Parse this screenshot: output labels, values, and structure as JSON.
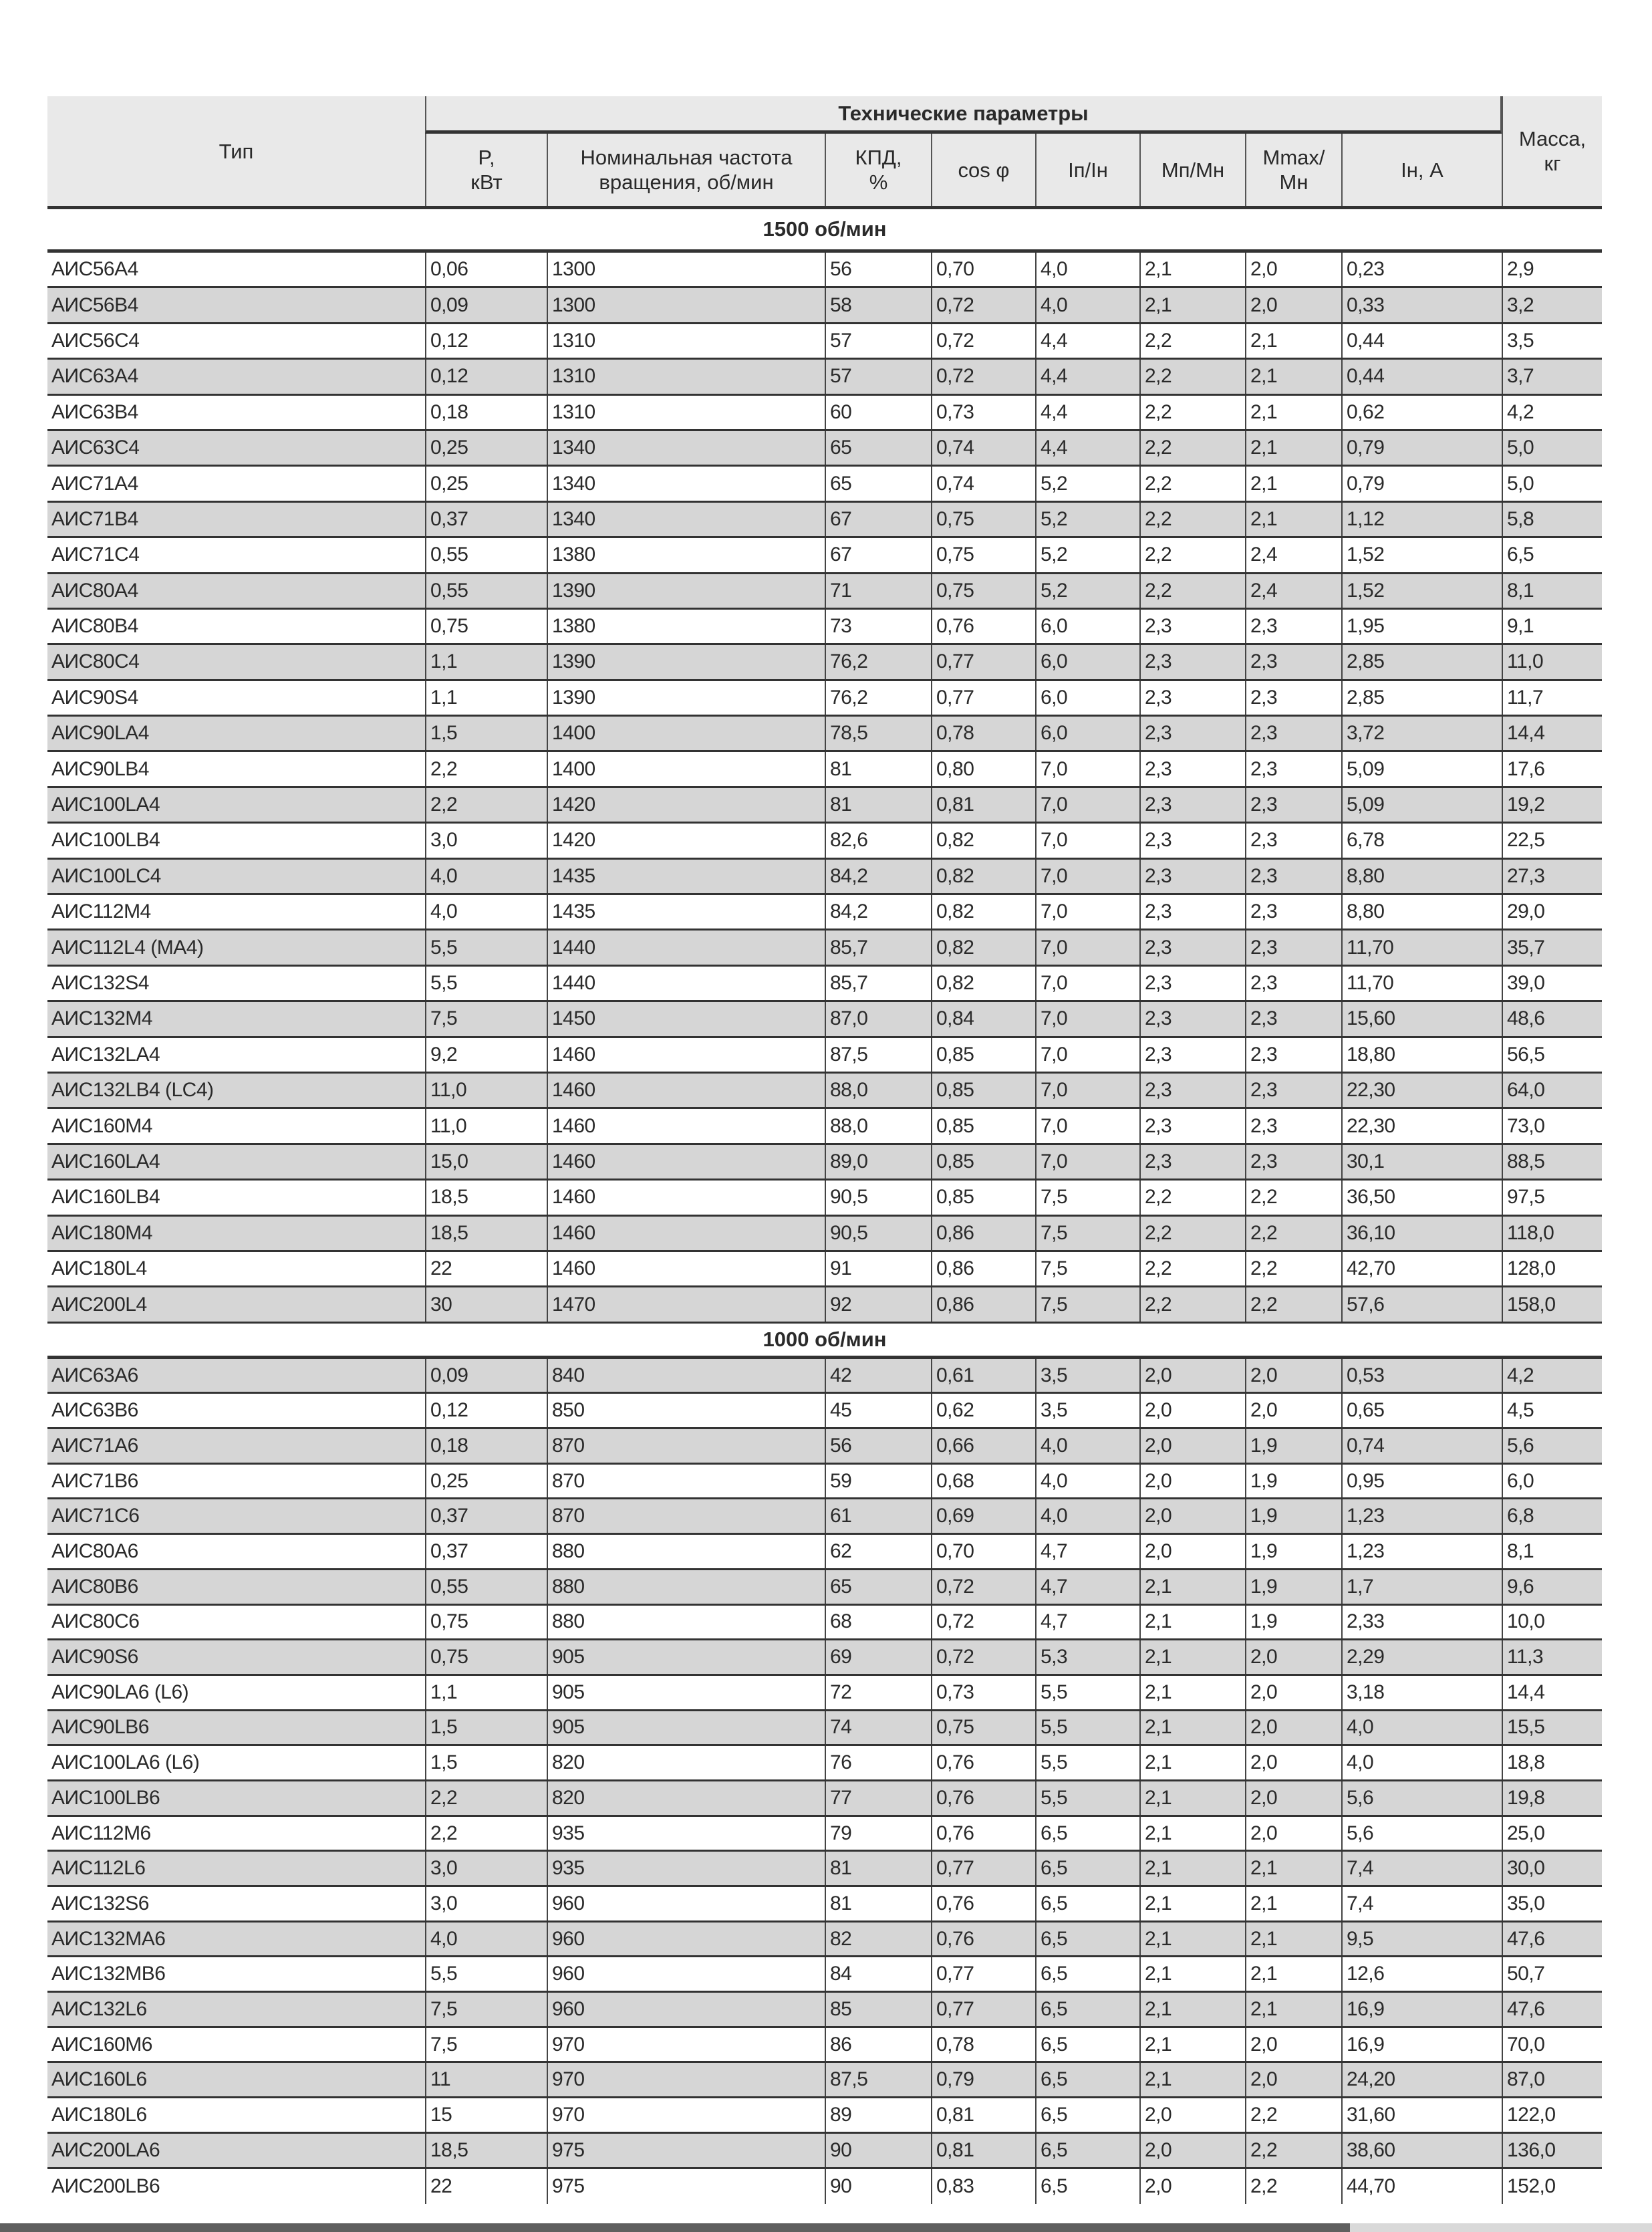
{
  "header": {
    "type": "Тип",
    "group": "Технические параметры",
    "columns": [
      "P,\nкВт",
      "Номинальная частота\nвращения, об/мин",
      "КПД,\n%",
      "cos φ",
      "Iп/Iн",
      "Mп/Mн",
      "Mmax/\nMн",
      "Iн, A"
    ],
    "mass": "Масса,\nкг"
  },
  "sections": [
    {
      "label": "1500 об/мин",
      "rows": [
        [
          "АИС56A4",
          "0,06",
          "1300",
          "56",
          "0,70",
          "4,0",
          "2,1",
          "2,0",
          "0,23",
          "2,9"
        ],
        [
          "АИС56B4",
          "0,09",
          "1300",
          "58",
          "0,72",
          "4,0",
          "2,1",
          "2,0",
          "0,33",
          "3,2"
        ],
        [
          "АИС56C4",
          "0,12",
          "1310",
          "57",
          "0,72",
          "4,4",
          "2,2",
          "2,1",
          "0,44",
          "3,5"
        ],
        [
          "АИС63A4",
          "0,12",
          "1310",
          "57",
          "0,72",
          "4,4",
          "2,2",
          "2,1",
          "0,44",
          "3,7"
        ],
        [
          "АИС63B4",
          "0,18",
          "1310",
          "60",
          "0,73",
          "4,4",
          "2,2",
          "2,1",
          "0,62",
          "4,2"
        ],
        [
          "АИС63C4",
          "0,25",
          "1340",
          "65",
          "0,74",
          "4,4",
          "2,2",
          "2,1",
          "0,79",
          "5,0"
        ],
        [
          "АИС71A4",
          "0,25",
          "1340",
          "65",
          "0,74",
          "5,2",
          "2,2",
          "2,1",
          "0,79",
          "5,0"
        ],
        [
          "АИС71B4",
          "0,37",
          "1340",
          "67",
          "0,75",
          "5,2",
          "2,2",
          "2,1",
          "1,12",
          "5,8"
        ],
        [
          "АИС71C4",
          "0,55",
          "1380",
          "67",
          "0,75",
          "5,2",
          "2,2",
          "2,4",
          "1,52",
          "6,5"
        ],
        [
          "АИС80A4",
          "0,55",
          "1390",
          "71",
          "0,75",
          "5,2",
          "2,2",
          "2,4",
          "1,52",
          "8,1"
        ],
        [
          "АИС80B4",
          "0,75",
          "1380",
          "73",
          "0,76",
          "6,0",
          "2,3",
          "2,3",
          "1,95",
          "9,1"
        ],
        [
          "АИС80C4",
          "1,1",
          "1390",
          "76,2",
          "0,77",
          "6,0",
          "2,3",
          "2,3",
          "2,85",
          "11,0"
        ],
        [
          "АИС90S4",
          "1,1",
          "1390",
          "76,2",
          "0,77",
          "6,0",
          "2,3",
          "2,3",
          "2,85",
          "11,7"
        ],
        [
          "АИС90LA4",
          "1,5",
          "1400",
          "78,5",
          "0,78",
          "6,0",
          "2,3",
          "2,3",
          "3,72",
          "14,4"
        ],
        [
          "АИС90LB4",
          "2,2",
          "1400",
          "81",
          "0,80",
          "7,0",
          "2,3",
          "2,3",
          "5,09",
          "17,6"
        ],
        [
          "АИС100LA4",
          "2,2",
          "1420",
          "81",
          "0,81",
          "7,0",
          "2,3",
          "2,3",
          "5,09",
          "19,2"
        ],
        [
          "АИС100LB4",
          "3,0",
          "1420",
          "82,6",
          "0,82",
          "7,0",
          "2,3",
          "2,3",
          "6,78",
          "22,5"
        ],
        [
          "АИС100LC4",
          "4,0",
          "1435",
          "84,2",
          "0,82",
          "7,0",
          "2,3",
          "2,3",
          "8,80",
          "27,3"
        ],
        [
          "АИС112M4",
          "4,0",
          "1435",
          "84,2",
          "0,82",
          "7,0",
          "2,3",
          "2,3",
          "8,80",
          "29,0"
        ],
        [
          "АИС112L4 (MA4)",
          "5,5",
          "1440",
          "85,7",
          "0,82",
          "7,0",
          "2,3",
          "2,3",
          "11,70",
          "35,7"
        ],
        [
          "АИС132S4",
          "5,5",
          "1440",
          "85,7",
          "0,82",
          "7,0",
          "2,3",
          "2,3",
          "11,70",
          "39,0"
        ],
        [
          "АИС132M4",
          "7,5",
          "1450",
          "87,0",
          "0,84",
          "7,0",
          "2,3",
          "2,3",
          "15,60",
          "48,6"
        ],
        [
          "АИС132LA4",
          "9,2",
          "1460",
          "87,5",
          "0,85",
          "7,0",
          "2,3",
          "2,3",
          "18,80",
          "56,5"
        ],
        [
          "АИС132LB4 (LC4)",
          "11,0",
          "1460",
          "88,0",
          "0,85",
          "7,0",
          "2,3",
          "2,3",
          "22,30",
          "64,0"
        ],
        [
          "АИС160M4",
          "11,0",
          "1460",
          "88,0",
          "0,85",
          "7,0",
          "2,3",
          "2,3",
          "22,30",
          "73,0"
        ],
        [
          "АИС160LA4",
          "15,0",
          "1460",
          "89,0",
          "0,85",
          "7,0",
          "2,3",
          "2,3",
          "30,1",
          "88,5"
        ],
        [
          "АИС160LB4",
          "18,5",
          "1460",
          "90,5",
          "0,85",
          "7,5",
          "2,2",
          "2,2",
          "36,50",
          "97,5"
        ],
        [
          "АИС180M4",
          "18,5",
          "1460",
          "90,5",
          "0,86",
          "7,5",
          "2,2",
          "2,2",
          "36,10",
          "118,0"
        ],
        [
          "АИС180L4",
          "22",
          "1460",
          "91",
          "0,86",
          "7,5",
          "2,2",
          "2,2",
          "42,70",
          "128,0"
        ],
        [
          "АИС200L4",
          "30",
          "1470",
          "92",
          "0,86",
          "7,5",
          "2,2",
          "2,2",
          "57,6",
          "158,0"
        ]
      ]
    },
    {
      "label": "1000 об/мин",
      "rows": [
        [
          "АИС63A6",
          "0,09",
          "840",
          "42",
          "0,61",
          "3,5",
          "2,0",
          "2,0",
          "0,53",
          "4,2"
        ],
        [
          "АИС63B6",
          "0,12",
          "850",
          "45",
          "0,62",
          "3,5",
          "2,0",
          "2,0",
          "0,65",
          "4,5"
        ],
        [
          "АИС71A6",
          "0,18",
          "870",
          "56",
          "0,66",
          "4,0",
          "2,0",
          "1,9",
          "0,74",
          "5,6"
        ],
        [
          "АИС71B6",
          "0,25",
          "870",
          "59",
          "0,68",
          "4,0",
          "2,0",
          "1,9",
          "0,95",
          "6,0"
        ],
        [
          "АИС71C6",
          "0,37",
          "870",
          "61",
          "0,69",
          "4,0",
          "2,0",
          "1,9",
          "1,23",
          "6,8"
        ],
        [
          "АИС80A6",
          "0,37",
          "880",
          "62",
          "0,70",
          "4,7",
          "2,0",
          "1,9",
          "1,23",
          "8,1"
        ],
        [
          "АИС80B6",
          "0,55",
          "880",
          "65",
          "0,72",
          "4,7",
          "2,1",
          "1,9",
          "1,7",
          "9,6"
        ],
        [
          "АИС80C6",
          "0,75",
          "880",
          "68",
          "0,72",
          "4,7",
          "2,1",
          "1,9",
          "2,33",
          "10,0"
        ],
        [
          "АИС90S6",
          "0,75",
          "905",
          "69",
          "0,72",
          "5,3",
          "2,1",
          "2,0",
          "2,29",
          "11,3"
        ],
        [
          "АИС90LA6 (L6)",
          "1,1",
          "905",
          "72",
          "0,73",
          "5,5",
          "2,1",
          "2,0",
          "3,18",
          "14,4"
        ],
        [
          "АИС90LB6",
          "1,5",
          "905",
          "74",
          "0,75",
          "5,5",
          "2,1",
          "2,0",
          "4,0",
          "15,5"
        ],
        [
          "АИС100LA6 (L6)",
          "1,5",
          "820",
          "76",
          "0,76",
          "5,5",
          "2,1",
          "2,0",
          "4,0",
          "18,8"
        ],
        [
          "АИС100LB6",
          "2,2",
          "820",
          "77",
          "0,76",
          "5,5",
          "2,1",
          "2,0",
          "5,6",
          "19,8"
        ],
        [
          "АИС112M6",
          "2,2",
          "935",
          "79",
          "0,76",
          "6,5",
          "2,1",
          "2,0",
          "5,6",
          "25,0"
        ],
        [
          "АИС112L6",
          "3,0",
          "935",
          "81",
          "0,77",
          "6,5",
          "2,1",
          "2,1",
          "7,4",
          "30,0"
        ],
        [
          "АИС132S6",
          "3,0",
          "960",
          "81",
          "0,76",
          "6,5",
          "2,1",
          "2,1",
          "7,4",
          "35,0"
        ],
        [
          "АИС132MA6",
          "4,0",
          "960",
          "82",
          "0,76",
          "6,5",
          "2,1",
          "2,1",
          "9,5",
          "47,6"
        ],
        [
          "АИС132MB6",
          "5,5",
          "960",
          "84",
          "0,77",
          "6,5",
          "2,1",
          "2,1",
          "12,6",
          "50,7"
        ],
        [
          "АИС132L6",
          "7,5",
          "960",
          "85",
          "0,77",
          "6,5",
          "2,1",
          "2,1",
          "16,9",
          "47,6"
        ],
        [
          "АИС160M6",
          "7,5",
          "970",
          "86",
          "0,78",
          "6,5",
          "2,1",
          "2,0",
          "16,9",
          "70,0"
        ],
        [
          "АИС160L6",
          "11",
          "970",
          "87,5",
          "0,79",
          "6,5",
          "2,1",
          "2,0",
          "24,20",
          "87,0"
        ],
        [
          "АИС180L6",
          "15",
          "970",
          "89",
          "0,81",
          "6,5",
          "2,0",
          "2,2",
          "31,60",
          "122,0"
        ],
        [
          "АИС200LA6",
          "18,5",
          "975",
          "90",
          "0,81",
          "6,5",
          "2,0",
          "2,2",
          "38,60",
          "136,0"
        ],
        [
          "АИС200LB6",
          "22",
          "975",
          "90",
          "0,83",
          "6,5",
          "2,0",
          "2,2",
          "44,70",
          "152,0"
        ]
      ]
    }
  ],
  "colors": {
    "header_bg": "#e9e9e9",
    "stripe": "#d6d6d6",
    "rule": "#333333"
  }
}
